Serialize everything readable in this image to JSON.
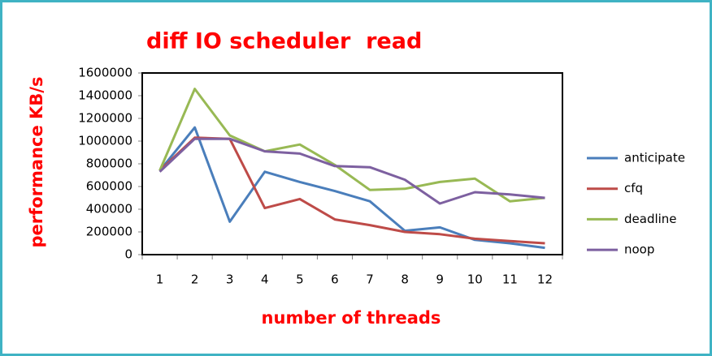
{
  "chart_data": {
    "type": "line",
    "title": "diff IO scheduler  read",
    "x_label": "number of threads",
    "y_label": "performance KB/s",
    "categories": [
      "1",
      "2",
      "3",
      "4",
      "5",
      "6",
      "7",
      "8",
      "9",
      "10",
      "11",
      "12"
    ],
    "series": [
      {
        "name": "anticipate",
        "color": "#4a7ebb",
        "values": [
          740000,
          1120000,
          290000,
          730000,
          640000,
          560000,
          470000,
          210000,
          240000,
          130000,
          100000,
          60000
        ]
      },
      {
        "name": "cfq",
        "color": "#be4b48",
        "values": [
          740000,
          1030000,
          1020000,
          410000,
          490000,
          310000,
          260000,
          200000,
          180000,
          140000,
          120000,
          100000
        ]
      },
      {
        "name": "deadline",
        "color": "#98b954",
        "values": [
          740000,
          1460000,
          1050000,
          910000,
          970000,
          790000,
          570000,
          580000,
          640000,
          670000,
          470000,
          500000
        ]
      },
      {
        "name": "noop",
        "color": "#7d60a0",
        "values": [
          730000,
          1020000,
          1020000,
          910000,
          890000,
          780000,
          770000,
          660000,
          450000,
          550000,
          530000,
          500000
        ]
      }
    ],
    "ylim": [
      0,
      1600000
    ],
    "yticks": [
      0,
      200000,
      400000,
      600000,
      800000,
      1000000,
      1200000,
      1400000,
      1600000
    ],
    "grid": false,
    "legend": "right"
  }
}
